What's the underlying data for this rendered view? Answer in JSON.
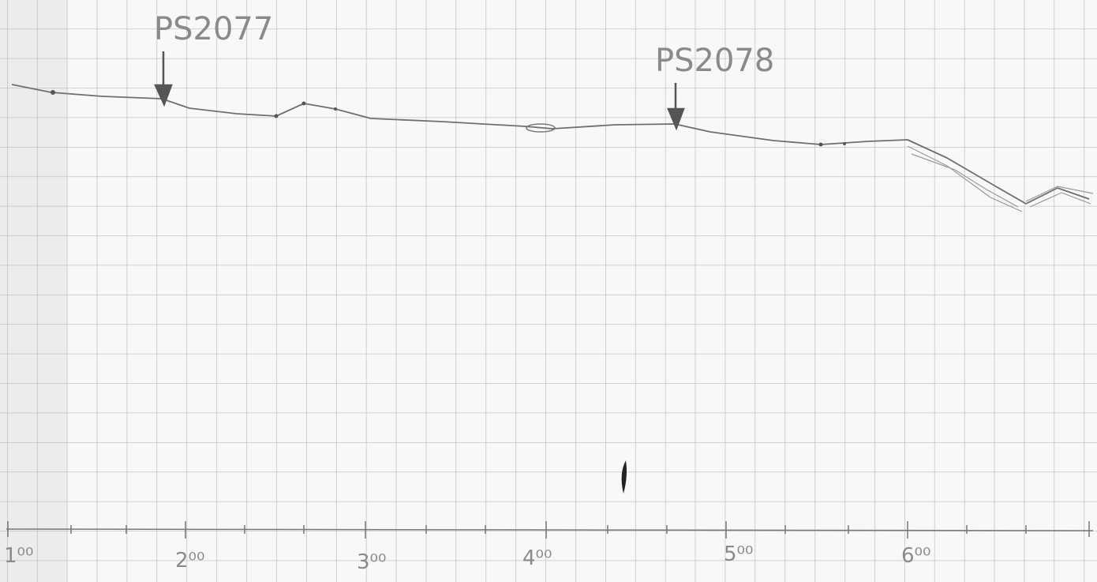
{
  "markers": [
    {
      "label": "PS2077"
    },
    {
      "label": "PS2078"
    }
  ],
  "axis": {
    "labels": [
      "1⁰⁰",
      "2⁰⁰",
      "3⁰⁰",
      "4⁰⁰",
      "5⁰⁰",
      "6⁰⁰"
    ]
  }
}
